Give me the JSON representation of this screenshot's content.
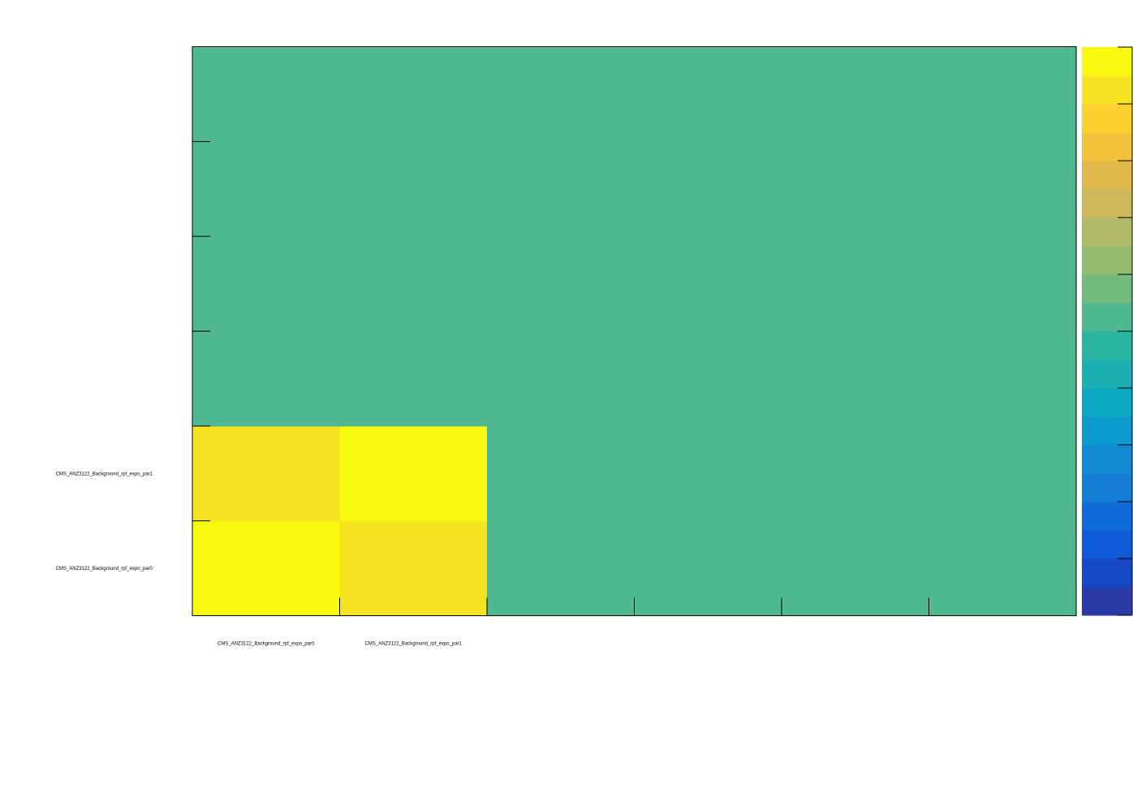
{
  "chart_data": {
    "type": "heatmap",
    "title": "",
    "xlabel": "",
    "ylabel": "",
    "n_cols": 6,
    "n_rows": 6,
    "x_tick_labels": [
      "CMS_ANZ3122_Background_rpf_expo_par0",
      "CMS_ANZ3122_Background_rpf_expo_par1",
      "",
      "",
      "",
      ""
    ],
    "y_tick_labels": [
      "CMS_ANZ3122_Background_rpf_expo_par0",
      "CMS_ANZ3122_Background_rpf_expo_par1",
      "",
      "",
      "",
      ""
    ],
    "zlim": [
      -1,
      1
    ],
    "values": [
      [
        1.0,
        0.8,
        0,
        0,
        0,
        0
      ],
      [
        0.8,
        1.0,
        0,
        0,
        0,
        0
      ],
      [
        0,
        0,
        0,
        0,
        0,
        0
      ],
      [
        0,
        0,
        0,
        0,
        0,
        0
      ],
      [
        0,
        0,
        0,
        0,
        0,
        0
      ],
      [
        0,
        0,
        0,
        0,
        0,
        0
      ]
    ],
    "palette": [
      "#2a3aa6",
      "#1448c6",
      "#0f5ad8",
      "#106ad8",
      "#137dd6",
      "#128ad3",
      "#0b9acb",
      "#0aa6c2",
      "#1baeb2",
      "#2ab5a3",
      "#50b990",
      "#72b97c",
      "#93bc73",
      "#b0b964",
      "#cdb75a",
      "#e0b94a",
      "#f2c23a",
      "#fcd12f",
      "#f6e322",
      "#f8f90f"
    ]
  }
}
